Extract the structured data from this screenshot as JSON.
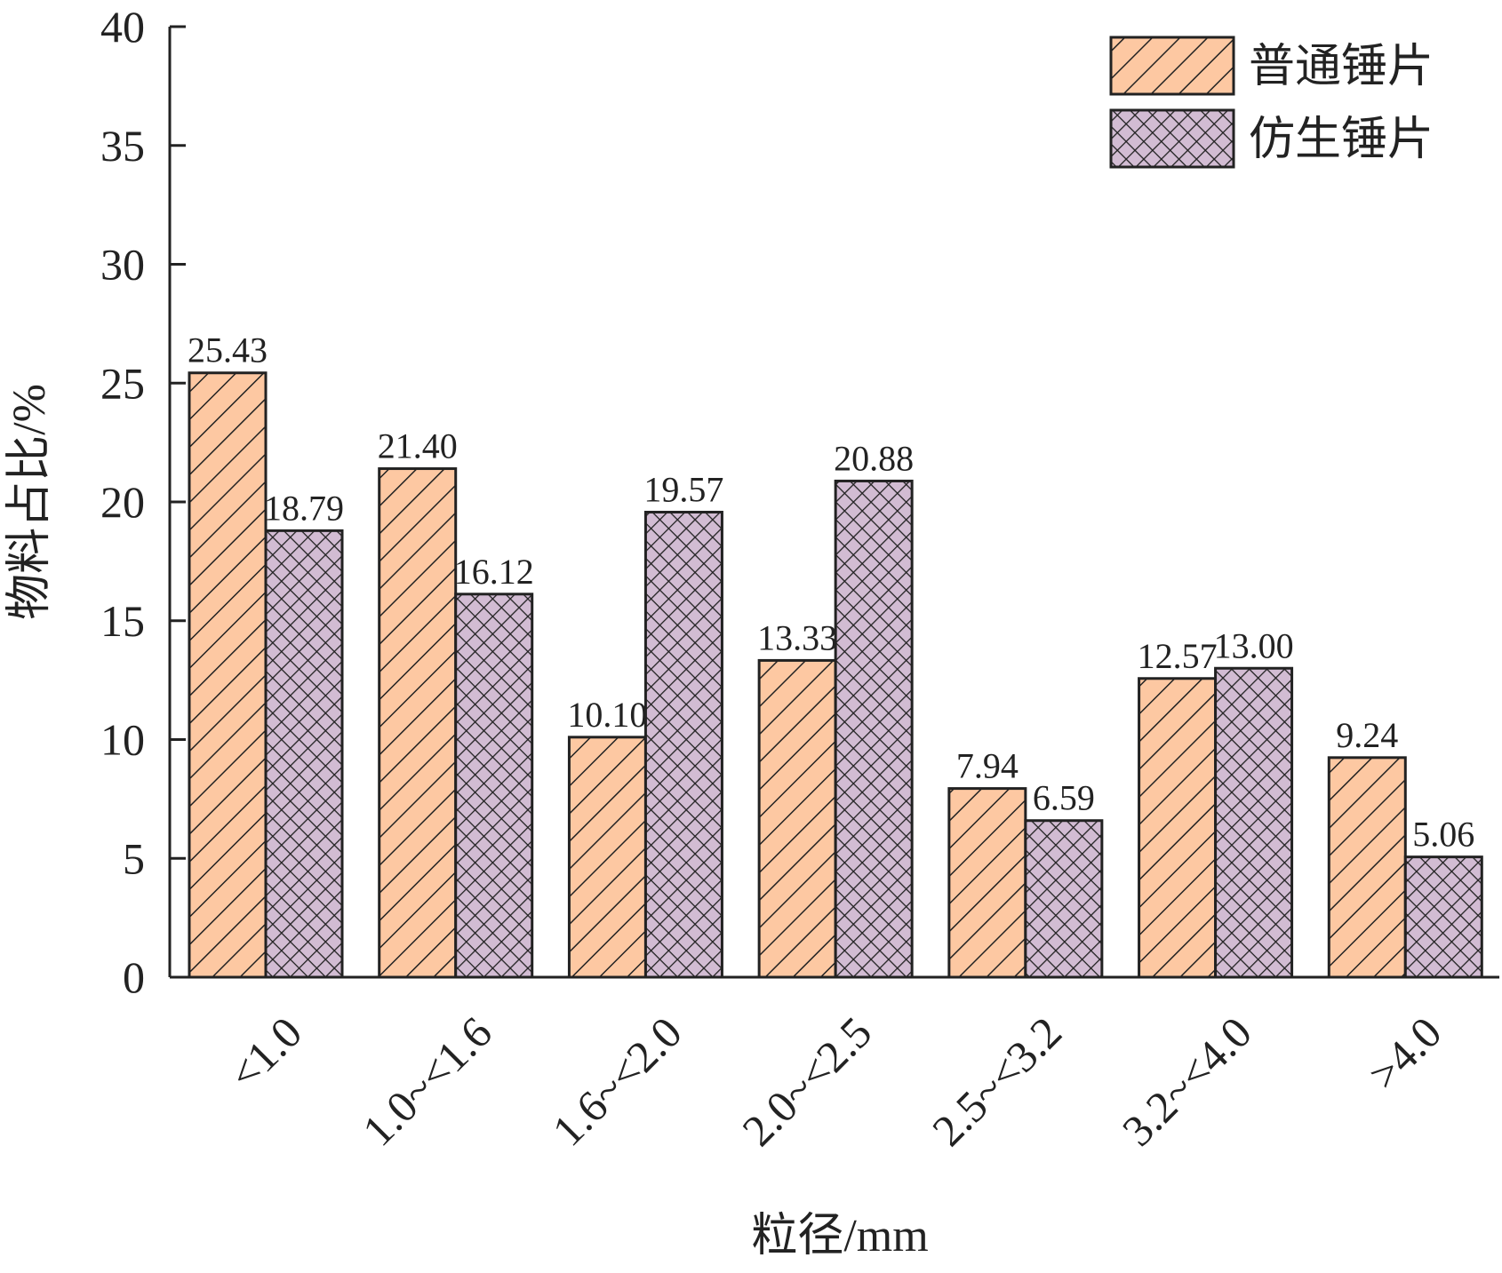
{
  "chart_data": {
    "type": "bar",
    "categories": [
      "<1.0",
      "1.0~<1.6",
      "1.6~<2.0",
      "2.0~<2.5",
      "2.5~<3.2",
      "3.2~<4.0",
      ">4.0"
    ],
    "series": [
      {
        "name": "普通锤片",
        "values": [
          25.43,
          21.4,
          10.1,
          13.33,
          7.94,
          12.57,
          9.24
        ],
        "value_labels": [
          "25.43",
          "21.40",
          "10.10",
          "13.33",
          "7.94",
          "12.57",
          "9.24"
        ],
        "color": "#FDC8A2",
        "pattern": "diagonal-hatch"
      },
      {
        "name": "仿生锤片",
        "values": [
          18.79,
          16.12,
          19.57,
          20.88,
          6.59,
          13.0,
          5.06
        ],
        "value_labels": [
          "18.79",
          "16.12",
          "19.57",
          "20.88",
          "6.59",
          "13.00",
          "5.06"
        ],
        "color": "#D2BCD3",
        "pattern": "cross-hatch"
      }
    ],
    "xlabel": "粒径/mm",
    "ylabel": "物料占比/%",
    "ylim": [
      0,
      40
    ],
    "yticks": [
      0,
      5,
      10,
      15,
      20,
      25,
      30,
      35,
      40
    ],
    "grid": false,
    "legend_position": "top-right"
  }
}
